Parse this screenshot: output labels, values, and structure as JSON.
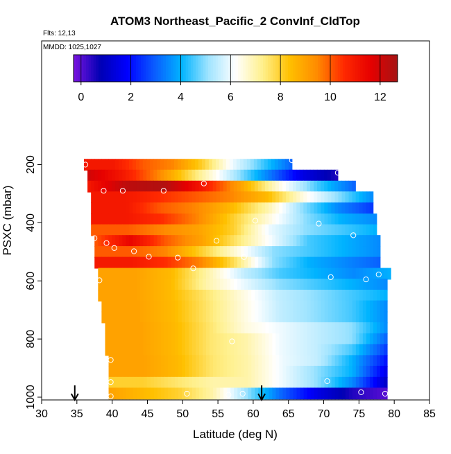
{
  "chart_data": {
    "type": "heatmap",
    "title": "ATOM3 Northeast_Pacific_2 ConvInf_CldTop",
    "flights": "Flts: 12,13",
    "dates": "MMDD: 1025,1027",
    "xlabel": "Latitude (deg N)",
    "ylabel": "PSXC (mbar)",
    "xlim": [
      30,
      85
    ],
    "ylim": [
      1000,
      0
    ],
    "x_ticks": [
      "30",
      "35",
      "40",
      "45",
      "50",
      "55",
      "60",
      "65",
      "70",
      "75",
      "80",
      "85"
    ],
    "x_tick_values": [
      30,
      35,
      40,
      45,
      50,
      55,
      60,
      65,
      70,
      75,
      80,
      85
    ],
    "y_ticks": [
      "200",
      "400",
      "600",
      "800",
      "1000"
    ],
    "y_tick_values": [
      200,
      400,
      600,
      800,
      1000
    ],
    "colorbar": {
      "range": [
        -0.3,
        12.7
      ],
      "ticks": [
        "0",
        "2",
        "4",
        "6",
        "8",
        "10",
        "12"
      ],
      "tick_values": [
        0,
        2,
        4,
        6,
        8,
        10,
        12
      ],
      "stops": [
        "#7b14e0",
        "#0000b4",
        "#0000ff",
        "#0a5cff",
        "#00b4ff",
        "#a0e4ff",
        "#ffffff",
        "#fff08c",
        "#ffc000",
        "#ff8c00",
        "#ff2a00",
        "#e60000",
        "#a51414"
      ]
    },
    "bands": [
      {
        "p": 200,
        "x0": 36,
        "x1": 65.5,
        "vals": [
          11,
          11,
          10,
          9.5,
          8,
          6,
          4.5,
          3
        ]
      },
      {
        "p": 237,
        "x0": 36.5,
        "x1": 72,
        "vals": [
          12,
          11,
          9.5,
          7.5,
          5.5,
          3.5,
          1.5,
          0.5
        ]
      },
      {
        "p": 275,
        "x0": 36.5,
        "x1": 74.5,
        "vals": [
          11,
          12.3,
          12.5,
          11,
          9,
          6.5,
          4.5,
          3
        ]
      },
      {
        "p": 312,
        "x0": 37,
        "x1": 77,
        "vals": [
          11,
          11,
          10.5,
          10,
          9.5,
          8.5,
          6.5,
          5,
          3.5
        ]
      },
      {
        "p": 350,
        "x0": 37,
        "x1": 77,
        "vals": [
          11,
          11,
          10,
          9.5,
          8.5,
          7,
          5,
          3.5,
          2.5
        ]
      },
      {
        "p": 388,
        "x0": 37,
        "x1": 77.5,
        "vals": [
          11,
          11,
          10.5,
          9.5,
          8,
          6.5,
          5,
          4,
          3.5
        ]
      },
      {
        "p": 425,
        "x0": 37,
        "x1": 77.5,
        "vals": [
          10,
          10,
          9.5,
          9,
          8,
          6,
          5,
          4.5,
          4
        ]
      },
      {
        "p": 462,
        "x0": 37.5,
        "x1": 78,
        "vals": [
          10,
          11.5,
          10,
          9,
          7.5,
          6,
          4.5,
          4,
          3.5
        ]
      },
      {
        "p": 500,
        "x0": 37.5,
        "x1": 78,
        "vals": [
          10,
          10,
          9.5,
          8,
          6.5,
          5,
          4.5,
          4,
          3.5
        ]
      },
      {
        "p": 537,
        "x0": 37.5,
        "x1": 78,
        "vals": [
          11,
          11,
          10.5,
          9.5,
          7.5,
          5,
          4,
          3.5,
          3
        ]
      },
      {
        "p": 575,
        "x0": 38,
        "x1": 79.5,
        "vals": [
          9,
          9,
          8.5,
          7,
          5.5,
          4.5,
          4,
          3.5,
          4
        ]
      },
      {
        "p": 612,
        "x0": 38,
        "x1": 79,
        "vals": [
          9,
          9,
          8.5,
          7,
          6,
          5,
          4.5,
          4,
          3.5
        ]
      },
      {
        "p": 650,
        "x0": 38,
        "x1": 79,
        "vals": [
          9,
          9,
          8.5,
          7.5,
          6.5,
          5.5,
          5,
          4.5,
          4
        ]
      },
      {
        "p": 687,
        "x0": 38.5,
        "x1": 79,
        "vals": [
          9,
          9,
          8.5,
          7.5,
          6.5,
          5.5,
          5,
          4.5,
          3.5
        ]
      },
      {
        "p": 725,
        "x0": 38.5,
        "x1": 79,
        "vals": [
          9,
          9,
          8.5,
          7.5,
          6.5,
          5.5,
          5,
          4.5,
          3.5
        ]
      },
      {
        "p": 762,
        "x0": 39,
        "x1": 79,
        "vals": [
          9,
          9,
          8.5,
          7.5,
          6.5,
          6,
          5.5,
          5,
          3.5
        ]
      },
      {
        "p": 800,
        "x0": 39,
        "x1": 79,
        "vals": [
          9,
          9,
          8.5,
          7.5,
          7,
          6,
          5.5,
          5,
          3
        ]
      },
      {
        "p": 837,
        "x0": 39,
        "x1": 79,
        "vals": [
          9,
          9,
          8.5,
          7.5,
          7,
          6,
          5.5,
          4.5,
          2.5
        ]
      },
      {
        "p": 875,
        "x0": 39.5,
        "x1": 79,
        "vals": [
          9,
          9,
          8.5,
          7.5,
          7,
          6,
          5.5,
          4,
          2
        ]
      },
      {
        "p": 912,
        "x0": 39.5,
        "x1": 79,
        "vals": [
          9,
          9,
          8.5,
          7.5,
          7,
          6,
          5,
          4,
          1.5
        ]
      },
      {
        "p": 950,
        "x0": 39.5,
        "x1": 79,
        "vals": [
          8,
          8,
          7.5,
          7,
          7,
          6,
          5,
          3.5,
          1
        ]
      },
      {
        "p": 987,
        "x0": 39.5,
        "x1": 79,
        "vals": [
          9,
          8.5,
          8,
          7,
          5,
          3,
          1.5,
          0.5,
          0
        ]
      }
    ],
    "points": [
      {
        "x": 36.2,
        "y": 200
      },
      {
        "x": 65.5,
        "y": 185
      },
      {
        "x": 72,
        "y": 228
      },
      {
        "x": 53,
        "y": 265
      },
      {
        "x": 38.8,
        "y": 290
      },
      {
        "x": 41.5,
        "y": 290
      },
      {
        "x": 47.3,
        "y": 290
      },
      {
        "x": 60.3,
        "y": 393
      },
      {
        "x": 69.3,
        "y": 403
      },
      {
        "x": 74.2,
        "y": 443
      },
      {
        "x": 37.5,
        "y": 453
      },
      {
        "x": 39.2,
        "y": 470
      },
      {
        "x": 40.3,
        "y": 487
      },
      {
        "x": 43.1,
        "y": 498
      },
      {
        "x": 45.2,
        "y": 517
      },
      {
        "x": 49.3,
        "y": 520
      },
      {
        "x": 54.8,
        "y": 462
      },
      {
        "x": 58.7,
        "y": 518
      },
      {
        "x": 51.5,
        "y": 557
      },
      {
        "x": 38.2,
        "y": 598
      },
      {
        "x": 71,
        "y": 587
      },
      {
        "x": 76,
        "y": 595
      },
      {
        "x": 77.8,
        "y": 578
      },
      {
        "x": 57,
        "y": 808
      },
      {
        "x": 39.8,
        "y": 872
      },
      {
        "x": 39.8,
        "y": 948
      },
      {
        "x": 70.5,
        "y": 945
      },
      {
        "x": 50.6,
        "y": 988
      },
      {
        "x": 56.5,
        "y": 992
      },
      {
        "x": 58.5,
        "y": 988
      },
      {
        "x": 75.3,
        "y": 983
      },
      {
        "x": 78.7,
        "y": 988
      },
      {
        "x": 39.8,
        "y": 997
      }
    ],
    "arrows": [
      {
        "x": 34.7
      },
      {
        "x": 61.2
      }
    ]
  }
}
